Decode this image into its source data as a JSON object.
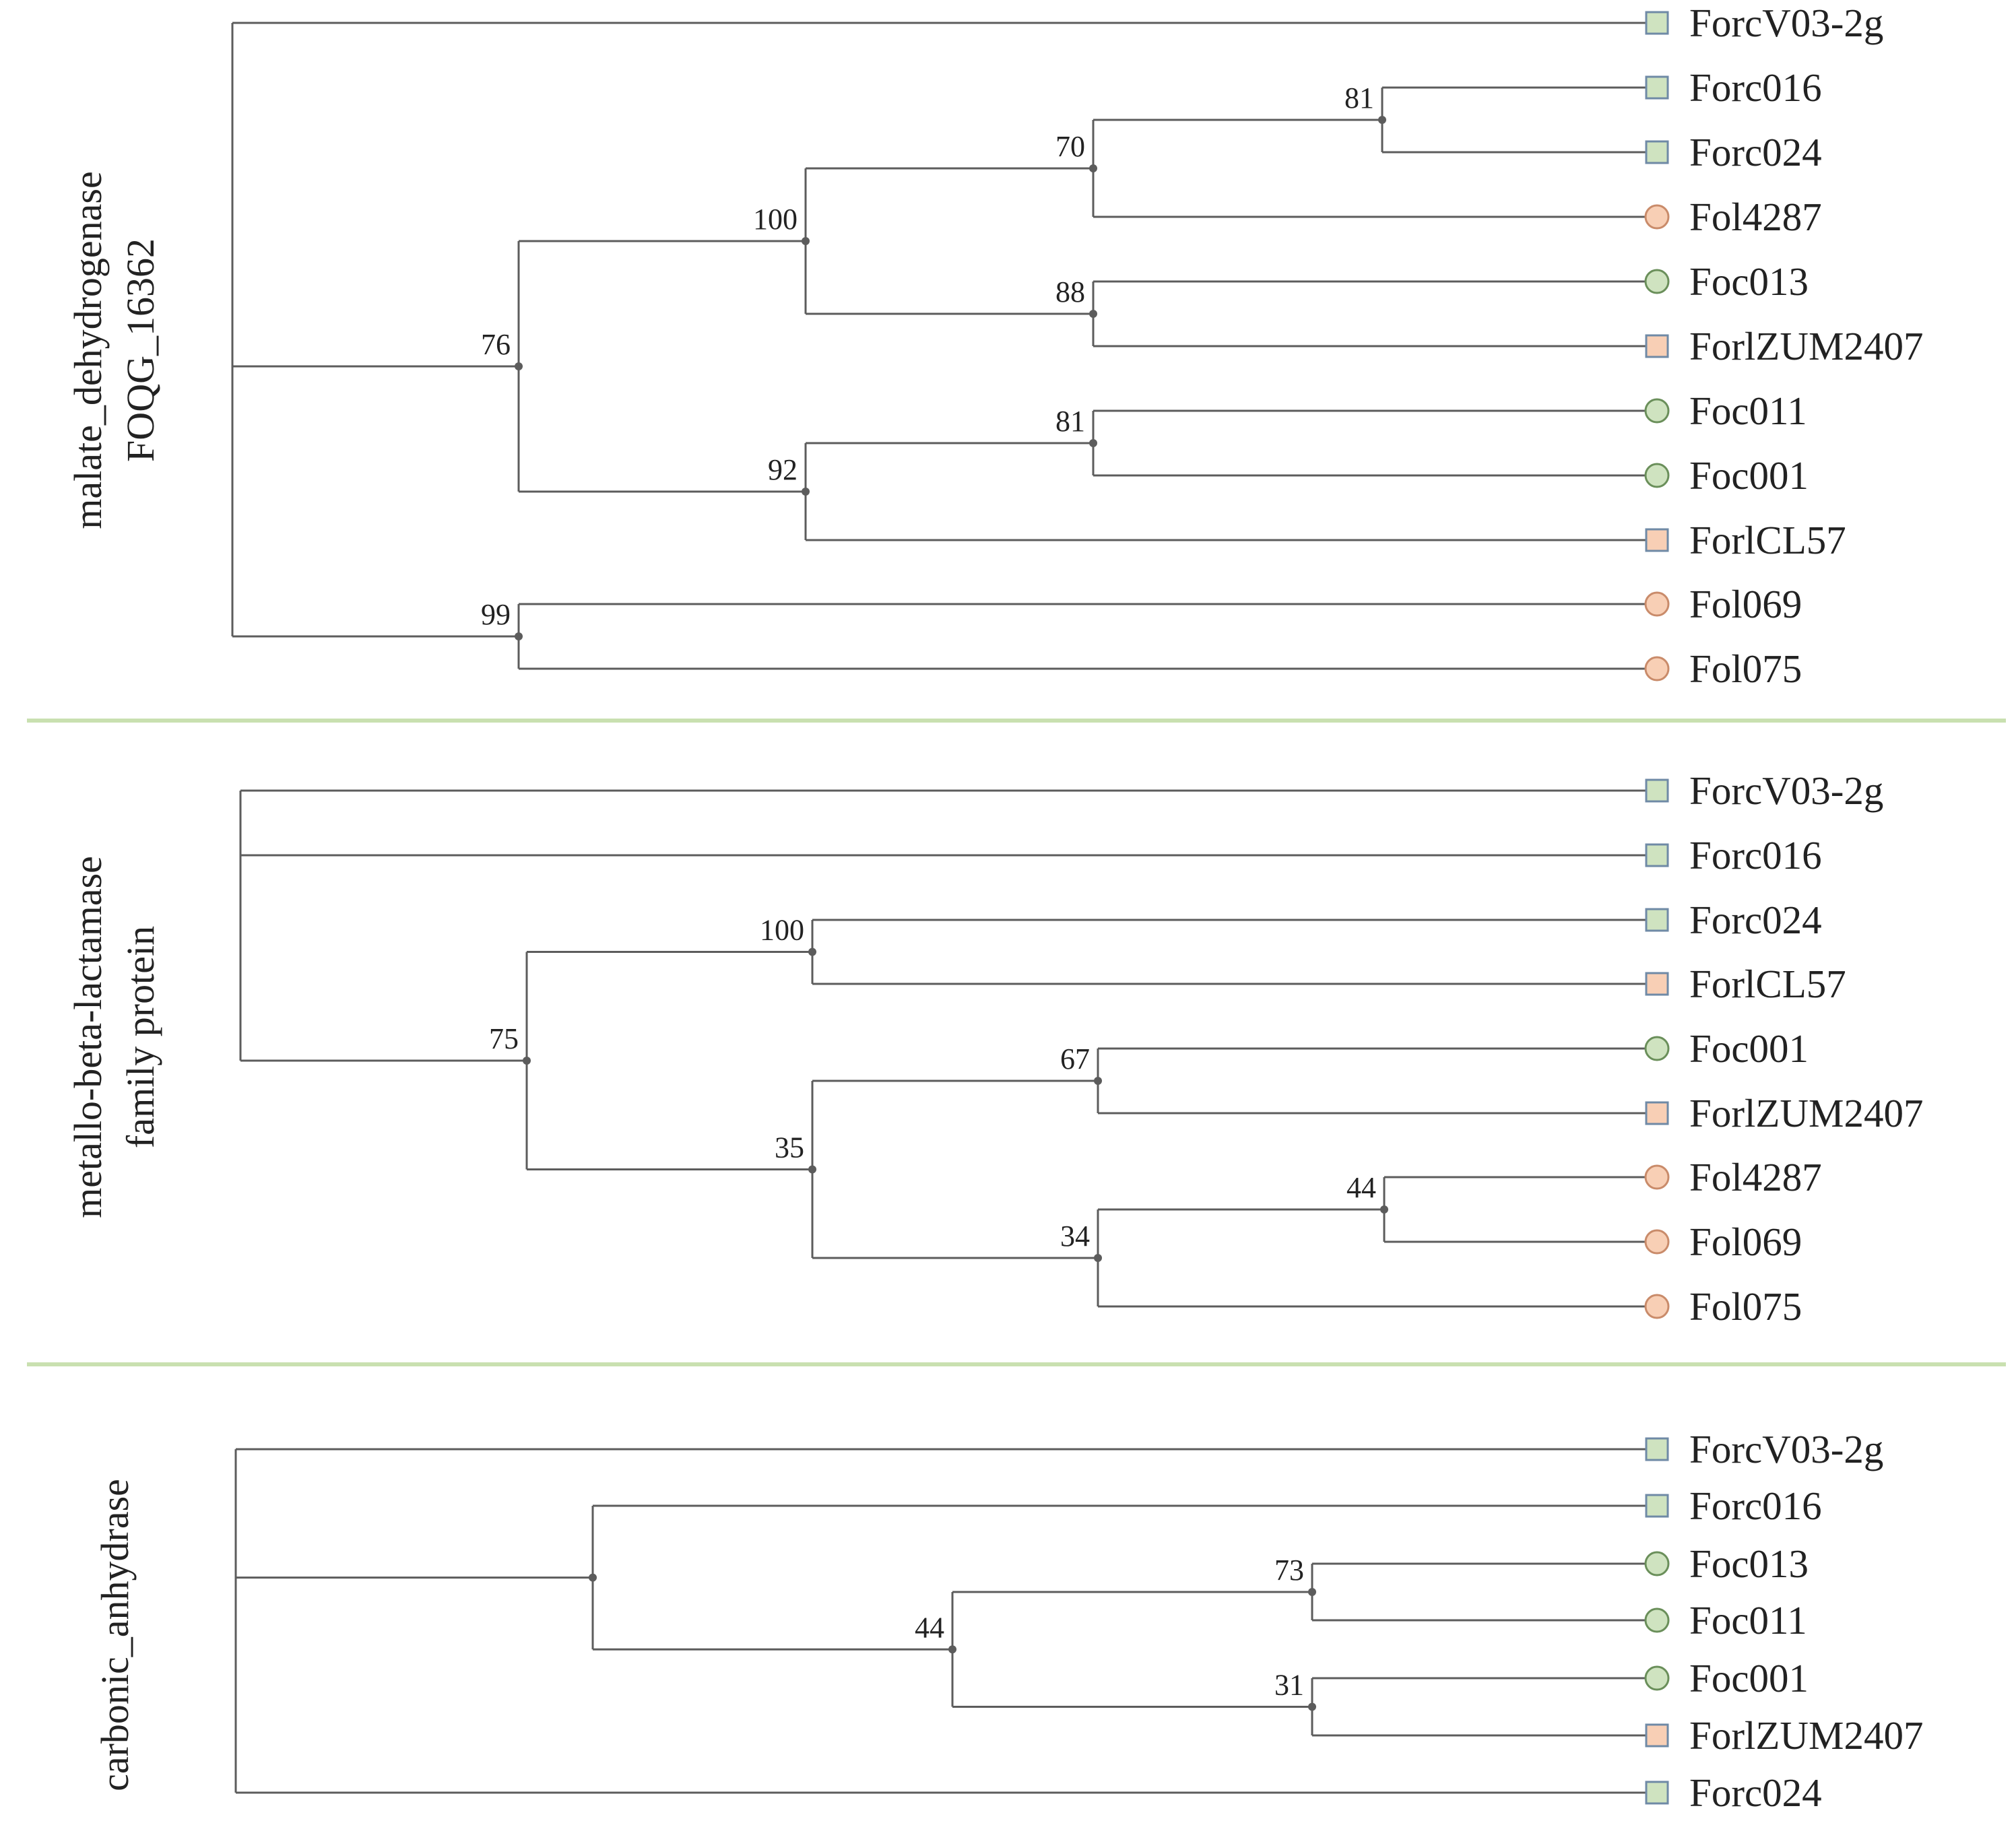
{
  "colors": {
    "branch": "#5c5c5c",
    "divider": "#c9e0b0",
    "green_fill": "#cfe3c0",
    "green_stroke": "#6a8f5a",
    "orange_fill": "#f8cfb5",
    "orange_stroke": "#c98b6a",
    "square_stroke": "#6f8aa6"
  },
  "legend_marker_icons": {
    "green_square": "green-square-icon",
    "orange_square": "orange-square-icon",
    "green_circle": "green-circle-icon",
    "orange_circle": "orange-circle-icon"
  },
  "panels": [
    {
      "title_lines": [
        "malate_dehydrogenase",
        "FOQG_16362"
      ],
      "tips": [
        {
          "label": "ForcV03-2g",
          "marker": "green_square"
        },
        {
          "label": "Forc016",
          "marker": "green_square"
        },
        {
          "label": "Forc024",
          "marker": "green_square"
        },
        {
          "label": "Fol4287",
          "marker": "orange_circle"
        },
        {
          "label": "Foc013",
          "marker": "green_circle"
        },
        {
          "label": "ForlZUM2407",
          "marker": "orange_square"
        },
        {
          "label": "Foc011",
          "marker": "green_circle"
        },
        {
          "label": "Foc001",
          "marker": "green_circle"
        },
        {
          "label": "ForlCL57",
          "marker": "orange_square"
        },
        {
          "label": "Fol069",
          "marker": "orange_circle"
        },
        {
          "label": "Fol075",
          "marker": "orange_circle"
        }
      ],
      "support_values": [
        "81",
        "70",
        "100",
        "88",
        "76",
        "81",
        "92",
        "99"
      ]
    },
    {
      "title_lines": [
        "metallo-beta-lactamase",
        "family protein"
      ],
      "tips": [
        {
          "label": "ForcV03-2g",
          "marker": "green_square"
        },
        {
          "label": "Forc016",
          "marker": "green_square"
        },
        {
          "label": "Forc024",
          "marker": "green_square"
        },
        {
          "label": "ForlCL57",
          "marker": "orange_square"
        },
        {
          "label": "Foc001",
          "marker": "green_circle"
        },
        {
          "label": "ForlZUM2407",
          "marker": "orange_square"
        },
        {
          "label": "Fol4287",
          "marker": "orange_circle"
        },
        {
          "label": "Fol069",
          "marker": "orange_circle"
        },
        {
          "label": "Fol075",
          "marker": "orange_circle"
        }
      ],
      "support_values": [
        "100",
        "75",
        "67",
        "35",
        "44",
        "34"
      ]
    },
    {
      "title_lines": [
        "carbonic_anhydrase"
      ],
      "tips": [
        {
          "label": "ForcV03-2g",
          "marker": "green_square"
        },
        {
          "label": "Forc016",
          "marker": "green_square"
        },
        {
          "label": "Foc013",
          "marker": "green_circle"
        },
        {
          "label": "Foc011",
          "marker": "green_circle"
        },
        {
          "label": "Foc001",
          "marker": "green_circle"
        },
        {
          "label": "ForlZUM2407",
          "marker": "orange_square"
        },
        {
          "label": "Forc024",
          "marker": "green_square"
        }
      ],
      "support_values": [
        "73",
        "44",
        "31"
      ]
    }
  ]
}
